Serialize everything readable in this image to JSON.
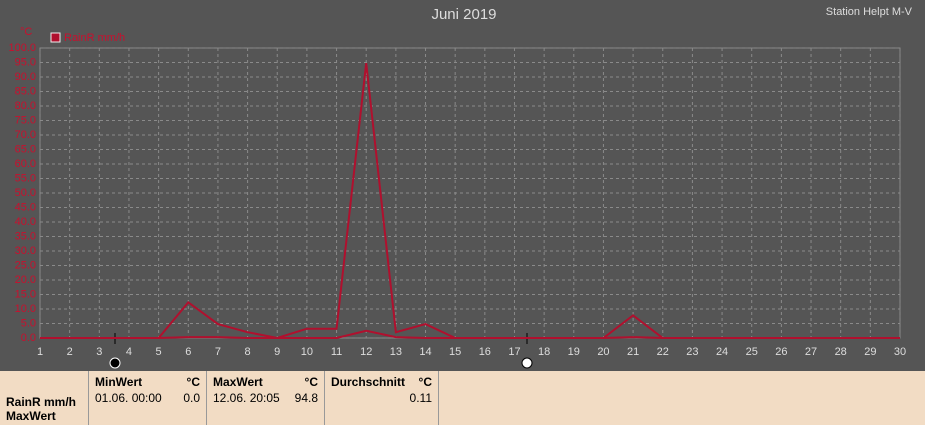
{
  "chart_data": {
    "type": "line",
    "title": "Juni 2019",
    "subtitle": "Station Helpt M-V",
    "y_unit": "°C",
    "x": [
      1,
      2,
      3,
      4,
      5,
      6,
      7,
      8,
      9,
      10,
      11,
      12,
      13,
      14,
      15,
      16,
      17,
      18,
      19,
      20,
      21,
      22,
      23,
      24,
      25,
      26,
      27,
      28,
      29,
      30
    ],
    "series": [
      {
        "name": "RainR mm/h",
        "color": "#b0102e",
        "values": [
          0,
          0,
          0,
          0,
          0,
          12.3,
          4.8,
          2,
          0,
          3.2,
          3.2,
          94.8,
          2,
          4.8,
          0,
          0,
          0,
          0,
          0,
          0,
          7.8,
          0,
          0,
          0,
          0,
          0,
          0,
          0,
          0,
          0
        ]
      },
      {
        "color": "#b0102e",
        "values": [
          0,
          0,
          0,
          0,
          0,
          0.3,
          0.3,
          0,
          0,
          0,
          0,
          2.5,
          0.3,
          0,
          0,
          0,
          0,
          0,
          0,
          0,
          0.3,
          0,
          0,
          0,
          0,
          0,
          0,
          0,
          0,
          0
        ]
      }
    ],
    "xlim": [
      1,
      30
    ],
    "xticks": [
      1,
      2,
      3,
      4,
      5,
      6,
      7,
      8,
      9,
      10,
      11,
      12,
      13,
      14,
      15,
      16,
      17,
      18,
      19,
      20,
      21,
      22,
      23,
      24,
      25,
      26,
      27,
      28,
      29,
      30
    ],
    "ylim": [
      0,
      100
    ],
    "yticks": [
      {
        "value": 0,
        "label": "0.0"
      },
      {
        "value": 5,
        "label": "5.0"
      },
      {
        "value": 10,
        "label": "10.0"
      },
      {
        "value": 15,
        "label": "15.0"
      },
      {
        "value": 20,
        "label": "20.0"
      },
      {
        "value": 25,
        "label": "25.0"
      },
      {
        "value": 30,
        "label": "30.0"
      },
      {
        "value": 35,
        "label": "35.0"
      },
      {
        "value": 40,
        "label": "40.0"
      },
      {
        "value": 45,
        "label": "45.0"
      },
      {
        "value": 50,
        "label": "50.0"
      },
      {
        "value": 55,
        "label": "55.0"
      },
      {
        "value": 60,
        "label": "60.0"
      },
      {
        "value": 65,
        "label": "65.0"
      },
      {
        "value": 70,
        "label": "70.0"
      },
      {
        "value": 75,
        "label": "75.0"
      },
      {
        "value": 80,
        "label": "80.0"
      },
      {
        "value": 85,
        "label": "85.0"
      },
      {
        "value": 90,
        "label": "90.0"
      },
      {
        "value": 95,
        "label": "95.0"
      },
      {
        "value": 100,
        "label": "100.0"
      }
    ],
    "grid": true,
    "legend": "top-left"
  },
  "table": {
    "row_label": [
      "RainR mm/h",
      "MaxWert"
    ],
    "columns": [
      {
        "header": "MinWert",
        "unit": "°C",
        "time": "01.06.  00:00",
        "value": "0.0"
      },
      {
        "header": "MaxWert",
        "unit": "°C",
        "time": "12.06.  20:05",
        "value": "94.8"
      },
      {
        "header": "Durchschnitt",
        "unit": "°C",
        "time": "",
        "value": "0.11"
      }
    ]
  }
}
